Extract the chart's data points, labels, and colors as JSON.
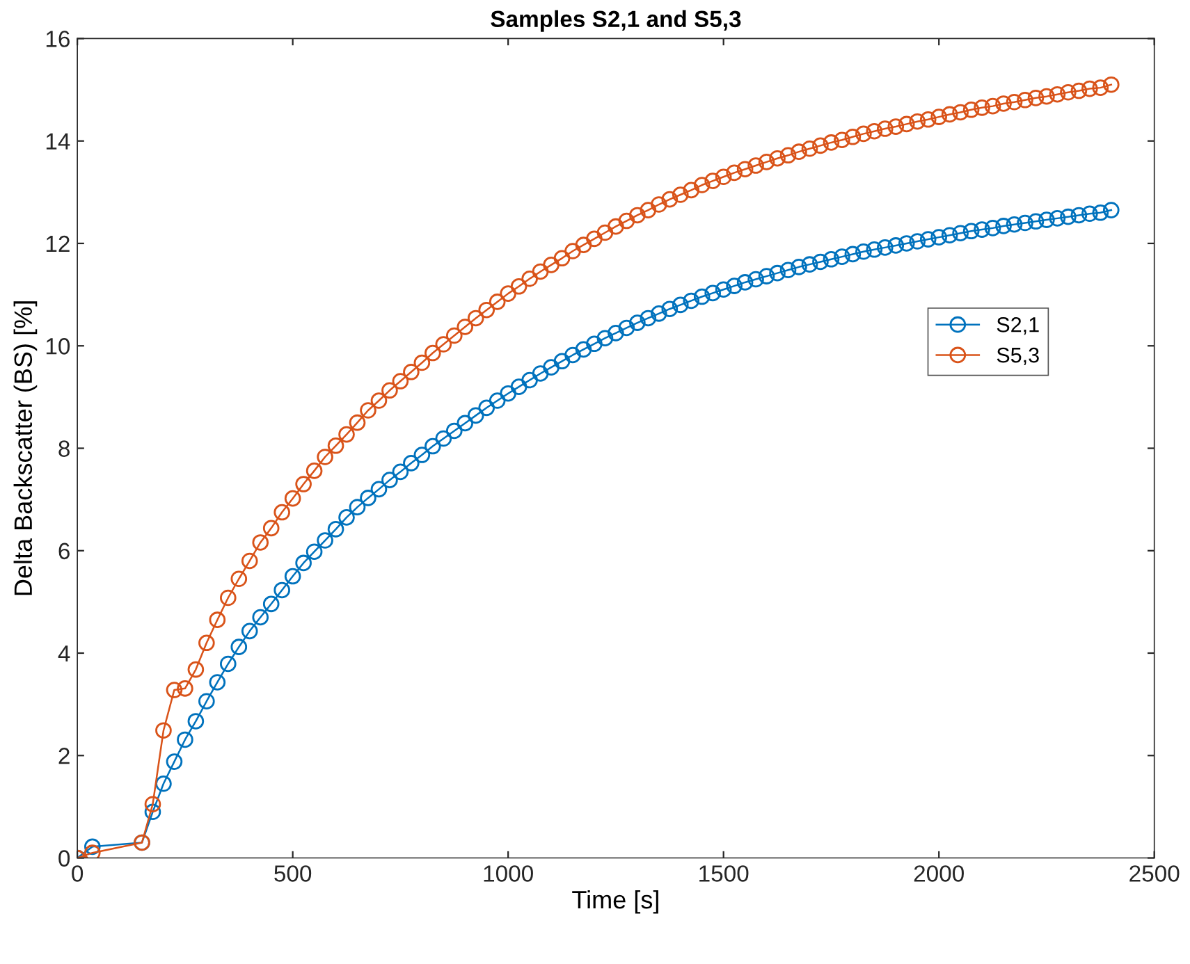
{
  "chart_data": {
    "type": "line",
    "title": "Samples S2,1 and S5,3",
    "xlabel": "Time [s]",
    "ylabel": "Delta Backscatter (BS) [%]",
    "x": [
      0,
      35,
      150,
      175,
      200,
      225,
      250,
      275,
      300,
      325,
      350,
      375,
      400,
      425,
      450,
      475,
      500,
      525,
      550,
      575,
      600,
      625,
      650,
      675,
      700,
      725,
      750,
      775,
      800,
      825,
      850,
      875,
      900,
      925,
      950,
      975,
      1000,
      1025,
      1050,
      1075,
      1100,
      1125,
      1150,
      1175,
      1200,
      1225,
      1250,
      1275,
      1300,
      1325,
      1350,
      1375,
      1400,
      1425,
      1450,
      1475,
      1500,
      1525,
      1550,
      1575,
      1600,
      1625,
      1650,
      1675,
      1700,
      1725,
      1750,
      1775,
      1800,
      1825,
      1850,
      1875,
      1900,
      1925,
      1950,
      1975,
      2000,
      2025,
      2050,
      2075,
      2100,
      2125,
      2150,
      2175,
      2200,
      2225,
      2250,
      2275,
      2300,
      2325,
      2350,
      2375,
      2400
    ],
    "series": [
      {
        "name": "S2,1",
        "color": "#0072bd",
        "values": [
          0,
          0.22,
          0.3,
          0.9,
          1.45,
          1.88,
          2.31,
          2.67,
          3.06,
          3.43,
          3.79,
          4.12,
          4.43,
          4.7,
          4.96,
          5.23,
          5.5,
          5.76,
          5.98,
          6.2,
          6.42,
          6.65,
          6.85,
          7.03,
          7.2,
          7.38,
          7.54,
          7.71,
          7.87,
          8.04,
          8.19,
          8.34,
          8.49,
          8.64,
          8.79,
          8.93,
          9.07,
          9.2,
          9.33,
          9.46,
          9.58,
          9.7,
          9.82,
          9.93,
          10.04,
          10.15,
          10.25,
          10.35,
          10.45,
          10.54,
          10.63,
          10.72,
          10.8,
          10.88,
          10.96,
          11.03,
          11.1,
          11.17,
          11.24,
          11.3,
          11.36,
          11.42,
          11.48,
          11.54,
          11.59,
          11.64,
          11.69,
          11.74,
          11.79,
          11.84,
          11.88,
          11.92,
          11.96,
          12.0,
          12.04,
          12.08,
          12.12,
          12.16,
          12.2,
          12.24,
          12.27,
          12.3,
          12.34,
          12.37,
          12.4,
          12.43,
          12.46,
          12.49,
          12.52,
          12.55,
          12.58,
          12.6,
          12.65
        ]
      },
      {
        "name": "S5,3",
        "color": "#d95319",
        "values": [
          0,
          0.1,
          0.3,
          1.05,
          2.49,
          3.28,
          3.31,
          3.68,
          4.2,
          4.65,
          5.08,
          5.45,
          5.8,
          6.16,
          6.44,
          6.75,
          7.02,
          7.3,
          7.56,
          7.83,
          8.05,
          8.27,
          8.5,
          8.74,
          8.93,
          9.13,
          9.31,
          9.49,
          9.67,
          9.86,
          10.03,
          10.2,
          10.37,
          10.54,
          10.7,
          10.86,
          11.02,
          11.16,
          11.31,
          11.45,
          11.58,
          11.71,
          11.85,
          11.97,
          12.09,
          12.21,
          12.33,
          12.44,
          12.55,
          12.65,
          12.76,
          12.86,
          12.95,
          13.04,
          13.14,
          13.22,
          13.3,
          13.38,
          13.45,
          13.52,
          13.59,
          13.66,
          13.72,
          13.79,
          13.85,
          13.91,
          13.97,
          14.02,
          14.08,
          14.14,
          14.19,
          14.24,
          14.28,
          14.33,
          14.38,
          14.42,
          14.47,
          14.52,
          14.56,
          14.61,
          14.65,
          14.68,
          14.73,
          14.76,
          14.8,
          14.84,
          14.87,
          14.91,
          14.95,
          14.98,
          15.02,
          15.04,
          15.1
        ]
      }
    ],
    "xlim": [
      0,
      2500
    ],
    "xticks": [
      0,
      500,
      1000,
      1500,
      2000,
      2500
    ],
    "ylim": [
      0,
      16
    ],
    "yticks": [
      0,
      2,
      4,
      6,
      8,
      10,
      12,
      14,
      16
    ],
    "grid": false,
    "legend": "right",
    "marker": "circle",
    "line_style": "solid"
  }
}
